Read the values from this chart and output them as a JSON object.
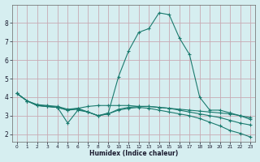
{
  "xlabel": "Humidex (Indice chaleur)",
  "bg_color": "#d6eef0",
  "grid_color": "#c8aab4",
  "line_color": "#1a7a6e",
  "xlim": [
    -0.5,
    23.5
  ],
  "ylim": [
    1.6,
    9.0
  ],
  "line1_x": [
    0,
    1,
    2,
    3,
    4,
    5,
    6,
    7,
    8,
    9,
    10,
    11,
    12,
    13,
    14,
    15,
    16,
    17,
    18,
    19,
    20,
    21,
    22,
    23
  ],
  "line1_y": [
    4.2,
    3.8,
    3.6,
    3.55,
    3.5,
    3.35,
    3.4,
    3.5,
    3.55,
    3.55,
    3.55,
    3.55,
    3.5,
    3.5,
    3.45,
    3.4,
    3.35,
    3.3,
    3.25,
    3.2,
    3.15,
    3.1,
    3.0,
    2.9
  ],
  "line2_x": [
    0,
    1,
    2,
    3,
    4,
    5,
    6,
    7,
    8,
    9,
    10,
    11,
    12,
    13,
    14,
    15,
    16,
    17,
    18,
    19,
    20,
    21,
    22,
    23
  ],
  "line2_y": [
    4.2,
    3.8,
    3.55,
    3.5,
    3.45,
    2.6,
    3.3,
    3.2,
    3.0,
    3.1,
    3.35,
    3.45,
    3.5,
    3.5,
    3.45,
    3.4,
    3.3,
    3.2,
    3.1,
    3.0,
    2.9,
    2.75,
    2.6,
    2.5
  ],
  "line3_x": [
    0,
    1,
    2,
    3,
    4,
    5,
    6,
    7,
    8,
    9,
    10,
    11,
    12,
    13,
    14,
    15,
    16,
    17,
    18,
    19,
    20,
    21,
    22,
    23
  ],
  "line3_y": [
    4.2,
    3.8,
    3.55,
    3.5,
    3.45,
    3.3,
    3.35,
    3.2,
    3.0,
    3.1,
    3.3,
    3.4,
    3.45,
    3.4,
    3.3,
    3.2,
    3.1,
    3.0,
    2.85,
    2.65,
    2.45,
    2.2,
    2.05,
    1.85
  ],
  "line4_x": [
    0,
    1,
    2,
    3,
    4,
    5,
    6,
    7,
    8,
    9,
    10,
    11,
    12,
    13,
    14,
    15,
    16,
    17,
    18,
    19,
    20,
    21,
    22,
    23
  ],
  "line4_y": [
    4.2,
    3.8,
    3.55,
    3.5,
    3.45,
    3.3,
    3.4,
    3.2,
    3.0,
    3.15,
    5.1,
    6.5,
    7.5,
    7.7,
    8.55,
    8.45,
    7.2,
    6.3,
    4.0,
    3.3,
    3.3,
    3.15,
    3.0,
    2.8
  ],
  "yticks": [
    2,
    3,
    4,
    5,
    6,
    7,
    8
  ],
  "xticks": [
    0,
    1,
    2,
    3,
    4,
    5,
    6,
    7,
    8,
    9,
    10,
    11,
    12,
    13,
    14,
    15,
    16,
    17,
    18,
    19,
    20,
    21,
    22,
    23
  ]
}
